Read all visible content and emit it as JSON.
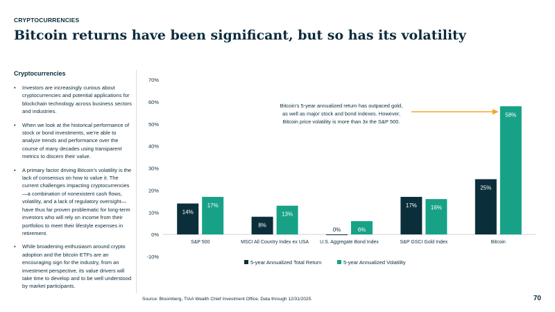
{
  "section_label": "CRYPTOCURRENCIES",
  "title": "Bitcoin returns have been significant, but so has its volatility",
  "sidebar": {
    "heading": "Cryptocurrencies",
    "bullets": [
      "Investors are increasingly curious about cryptocurrencies and potential applications for blockchain technology across business sectors and industries.",
      "When we look at the historical performance of stock or bond investments, we’re able to analyze trends and performance over the course of many decades using transparent metrics to discern their value.",
      "A primary factor driving Bitcoin’s volatility is the lack of consensus on how to value it. The current challenges impacting cryptocurrencies—a combination of nonexistent cash flows, volatility, and a lack of regulatory oversight—have thus far proven problematic for long-term investors who will rely on income from their portfolios to meet their lifestyle expenses in retirement.",
      "While broadening enthusiasm around crypto adoption and the bitcoin ETFs are an encouraging sign for the industry, from an investment perspective, its value drivers will take time to develop and to be well understood by market participants."
    ]
  },
  "colors": {
    "series1": "#0b2f3a",
    "series2": "#17a287",
    "arrow": "#f5a623",
    "text": "#0b2b3c"
  },
  "chart_data": {
    "type": "bar",
    "categories": [
      "S&P 500",
      "MSCI All Country Index ex USA",
      "U.S. Aggregate Bond Index",
      "S&P GSCI Gold Index",
      "Bitcoin"
    ],
    "series": [
      {
        "name": "5-year Annualized Total Return",
        "values": [
          14,
          8,
          0,
          17,
          25
        ],
        "labels": [
          "14%",
          "8%",
          "0%",
          "17%",
          "25%"
        ]
      },
      {
        "name": "5-year Annualized Volatility",
        "values": [
          17,
          13,
          6,
          16,
          58
        ],
        "labels": [
          "17%",
          "13%",
          "6%",
          "16%",
          "58%"
        ]
      }
    ],
    "ylim": [
      -10,
      70
    ],
    "yticks": [
      70,
      60,
      50,
      40,
      30,
      20,
      10,
      0,
      -10
    ],
    "ytick_labels": [
      "70%",
      "60%",
      "50%",
      "40%",
      "30%",
      "20%",
      "10%",
      "0%",
      "-10%"
    ],
    "legend_position": "bottom",
    "annotation": {
      "lines": [
        "Bitcoin’s 5-year annualized return has outpaced gold,",
        "as well as major stock and bond indexes. However,",
        "Bitcoin price volatility is more than 3x the S&P 500."
      ]
    }
  },
  "source": "Source: Bloomberg, TIAA Wealth Chief Investment Office. Data through 12/31/2025.",
  "page_number": "70"
}
